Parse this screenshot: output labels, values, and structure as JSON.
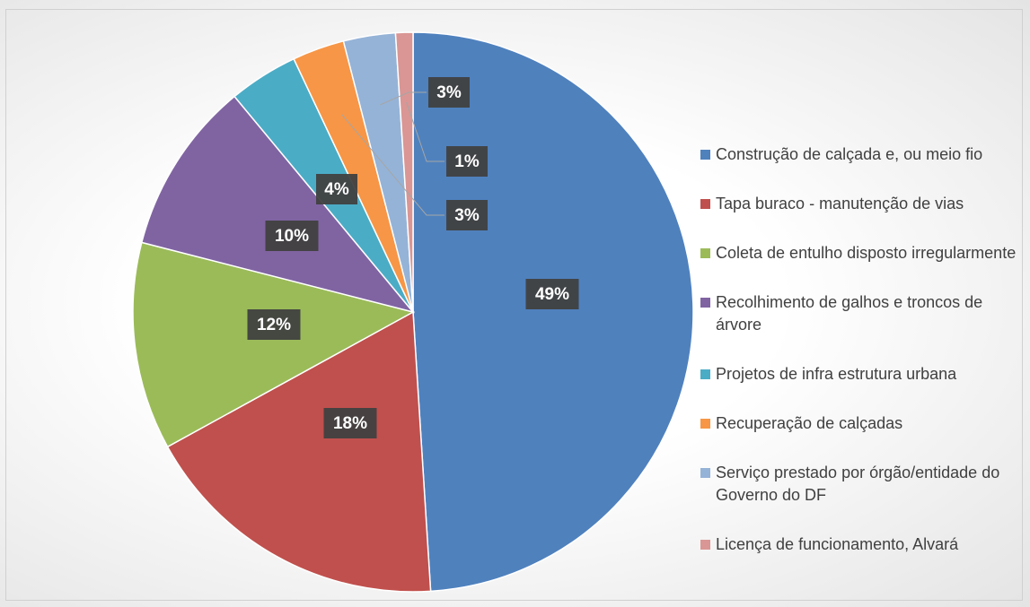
{
  "chart_data": {
    "type": "pie",
    "categories": [
      "Construção de calçada e, ou meio fio",
      "Tapa buraco - manutenção de vias",
      "Coleta de entulho disposto irregularmente",
      "Recolhimento de galhos e troncos de árvore",
      "Projetos de infra estrutura urbana",
      "Recuperação de calçadas",
      "Serviço prestado por órgão/entidade do Governo do DF",
      "Licença de funcionamento, Alvará"
    ],
    "values": [
      49,
      18,
      12,
      10,
      4,
      3,
      3,
      1
    ],
    "value_labels": [
      "49%",
      "18%",
      "12%",
      "10%",
      "4%",
      "3%",
      "3%",
      "1%"
    ],
    "colors": [
      "#4f81bd",
      "#c0504d",
      "#9bbb59",
      "#8064a2",
      "#4bacc6",
      "#f79646",
      "#95b3d7",
      "#d99694"
    ],
    "legend": "right"
  }
}
